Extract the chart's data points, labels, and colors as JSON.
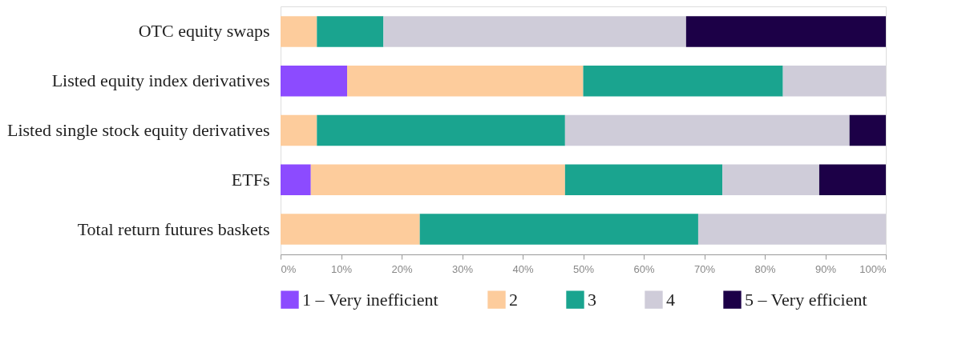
{
  "chart_data": {
    "type": "bar",
    "orientation": "horizontal",
    "stacked": true,
    "categories": [
      "OTC equity swaps",
      "Listed equity index derivatives",
      "Listed single stock equity derivatives",
      "ETFs",
      "Total return futures baskets"
    ],
    "series": [
      {
        "name": "1 – Very inefficient",
        "color": "#8c4bff",
        "values": [
          null,
          11,
          null,
          5,
          null
        ]
      },
      {
        "name": "2",
        "color": "#fdcc9c",
        "values": [
          6,
          39,
          6,
          42,
          23
        ]
      },
      {
        "name": "3",
        "color": "#1aa48f",
        "values": [
          11,
          33,
          41,
          26,
          46
        ]
      },
      {
        "name": "4",
        "color": "#cfccd9",
        "values": [
          50,
          17,
          47,
          16,
          31
        ]
      },
      {
        "name": "5 – Very efficient",
        "color": "#1c0047",
        "values": [
          33,
          null,
          6,
          11,
          null
        ]
      }
    ],
    "xlim": [
      0,
      100
    ],
    "xticks": [
      {
        "value": 0,
        "label": "0%"
      },
      {
        "value": 10,
        "label": "10%"
      },
      {
        "value": 20,
        "label": "20%"
      },
      {
        "value": 30,
        "label": "30%"
      },
      {
        "value": 40,
        "label": "40%"
      },
      {
        "value": 50,
        "label": "50%"
      },
      {
        "value": 60,
        "label": "60%"
      },
      {
        "value": 70,
        "label": "70%"
      },
      {
        "value": 80,
        "label": "80%"
      },
      {
        "value": 90,
        "label": "90%"
      },
      {
        "value": 100,
        "label": "100%"
      }
    ],
    "grid": false,
    "legend": "bottom"
  }
}
